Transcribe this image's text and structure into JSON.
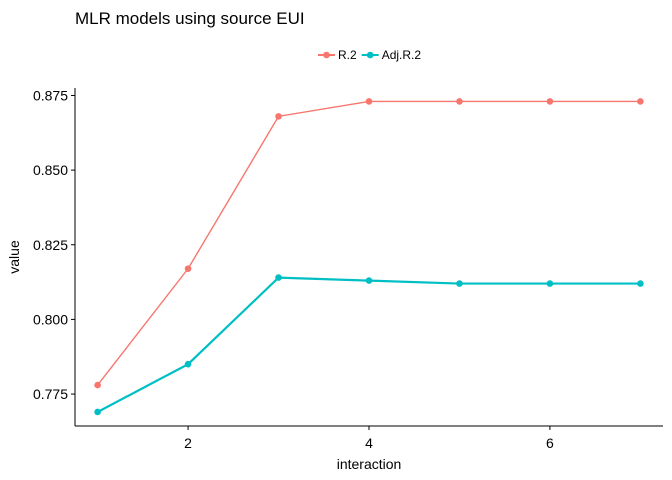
{
  "chart_data": {
    "type": "line",
    "title": "MLR models using source EUI",
    "xlabel": "interaction",
    "ylabel": "value",
    "x": [
      1,
      2,
      3,
      4,
      5,
      6,
      7
    ],
    "xlim": [
      0.75,
      7.25
    ],
    "ylim": [
      0.7643,
      0.8775
    ],
    "x_ticks": [
      2,
      4,
      6
    ],
    "y_ticks": [
      0.775,
      0.8,
      0.825,
      0.85,
      0.875
    ],
    "x_tick_labels": [
      "2",
      "4",
      "6"
    ],
    "y_tick_labels": [
      "0.775",
      "0.800",
      "0.825",
      "0.850",
      "0.875"
    ],
    "grid": false,
    "legend_position": "top",
    "series": [
      {
        "name": "R.2",
        "color": "#F8766D",
        "values": [
          0.778,
          0.817,
          0.868,
          0.873,
          0.873,
          0.873,
          0.873
        ]
      },
      {
        "name": "Adj.R.2",
        "color": "#00BFC4",
        "values": [
          0.769,
          0.785,
          0.814,
          0.813,
          0.812,
          0.812,
          0.812
        ]
      }
    ]
  }
}
